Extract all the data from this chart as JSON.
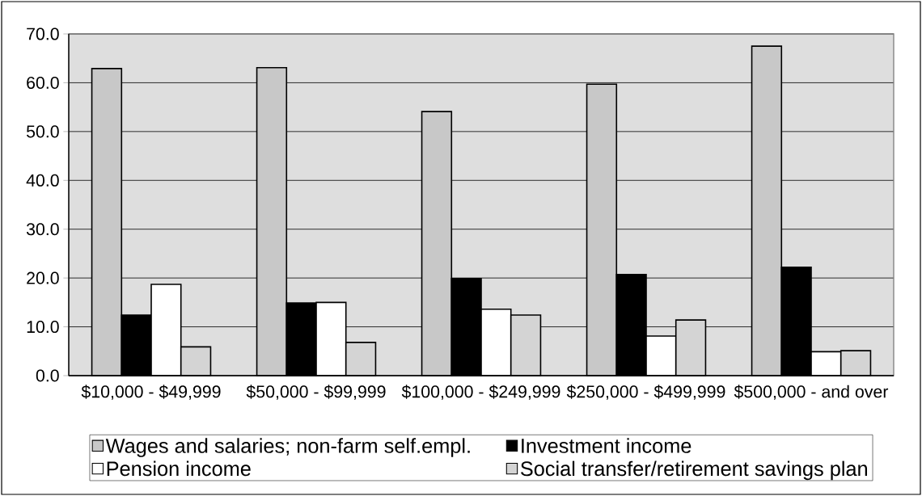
{
  "chart_data": {
    "type": "bar",
    "categories": [
      "$10,000 - $49,999",
      "$50,000 - $99,999",
      "$100,000 - $249,999",
      "$250,000 - $499,999",
      "$500,000 - and over"
    ],
    "series": [
      {
        "name": "Wages and salaries; non-farm self.empl.",
        "color": "#c8c8c8",
        "values": [
          62.9,
          63.1,
          54.1,
          59.7,
          67.5
        ]
      },
      {
        "name": "Investment income",
        "color": "#000000",
        "values": [
          12.4,
          14.9,
          19.9,
          20.7,
          22.2
        ]
      },
      {
        "name": "Pension income",
        "color": "#ffffff",
        "values": [
          18.7,
          15.0,
          13.6,
          8.1,
          4.9
        ]
      },
      {
        "name": "Social transfer/retirement savings plan",
        "color": "#d4d4d4",
        "values": [
          5.9,
          6.8,
          12.4,
          11.4,
          5.1
        ]
      }
    ],
    "ylim": [
      0,
      70
    ],
    "yticks": [
      {
        "value": 0,
        "label": "0.0"
      },
      {
        "value": 10,
        "label": "10.0"
      },
      {
        "value": 20,
        "label": "20.0"
      },
      {
        "value": 30,
        "label": "30.0"
      },
      {
        "value": 40,
        "label": "40.0"
      },
      {
        "value": 50,
        "label": "50.0"
      },
      {
        "value": 60,
        "label": "60.0"
      },
      {
        "value": 70,
        "label": "70.0"
      }
    ],
    "grid": "y",
    "legend": "bottom"
  }
}
